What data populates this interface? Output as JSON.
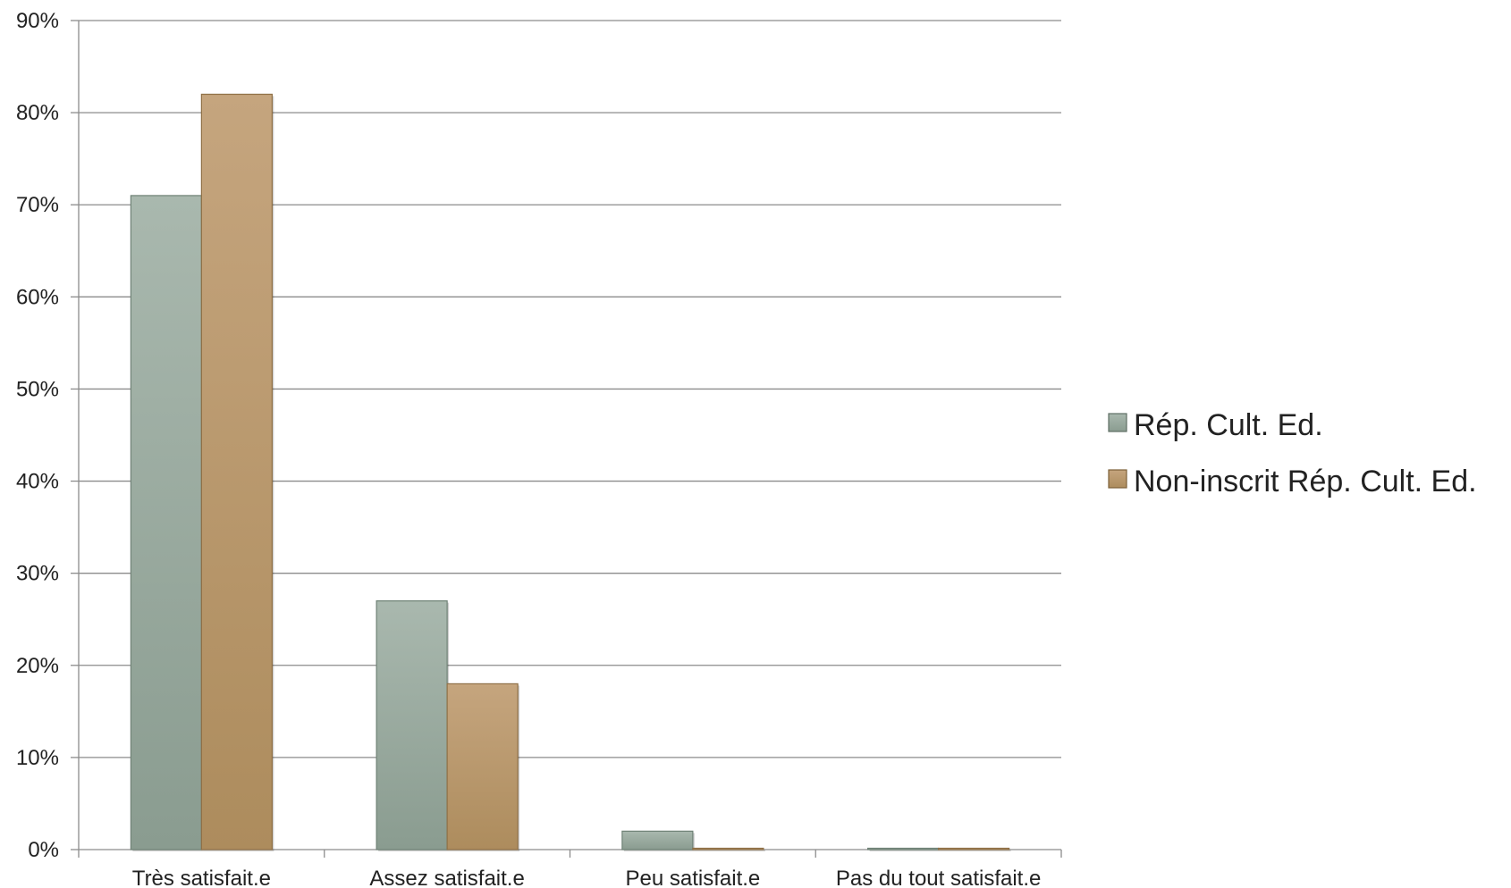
{
  "chart_data": {
    "type": "bar",
    "categories": [
      "Très satisfait.e",
      "Assez satisfait.e",
      "Peu satisfait.e",
      "Pas du tout satisfait.e"
    ],
    "series": [
      {
        "name": "Rép. Cult. Ed.",
        "values": [
          71,
          27,
          2,
          0
        ],
        "color": "#98aba0"
      },
      {
        "name": "Non-inscrit Rép. Cult. Ed.",
        "values": [
          82,
          18,
          0,
          0
        ],
        "color": "#bb9a6d"
      }
    ],
    "y_ticks": [
      "0%",
      "10%",
      "20%",
      "30%",
      "40%",
      "50%",
      "60%",
      "70%",
      "80%",
      "90%"
    ],
    "ylim": [
      0,
      90
    ],
    "grid": true,
    "legend_position": "right",
    "title": "",
    "xlabel": "",
    "ylabel": ""
  }
}
